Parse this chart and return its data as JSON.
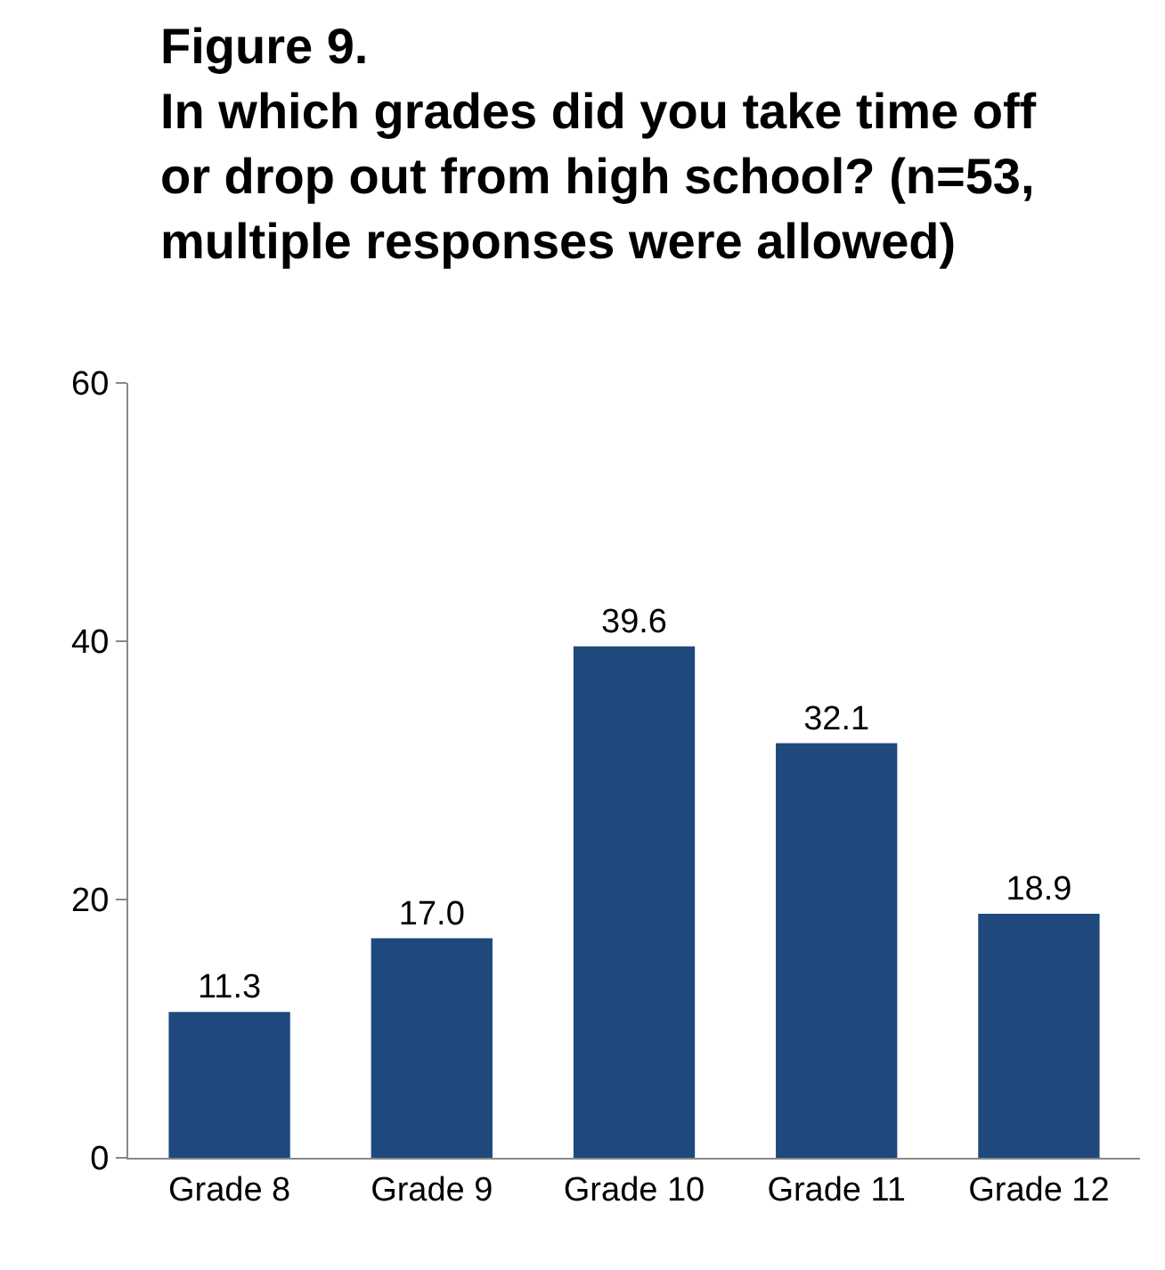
{
  "chart_data": {
    "type": "bar",
    "title": "Figure 9.\nIn which grades did you take time off\nor drop out from high school? (n=53,\nmultiple responses were allowed)",
    "categories": [
      "Grade 8",
      "Grade 9",
      "Grade 10",
      "Grade 11",
      "Grade 12"
    ],
    "values": [
      11.3,
      17.0,
      39.6,
      32.1,
      18.9
    ],
    "color": "#1f497d",
    "ylim": [
      0,
      60
    ],
    "yticks": [
      0,
      20,
      40,
      60
    ],
    "data_labels": true,
    "value_labels": [
      "11.3",
      "17.0",
      "39.6",
      "32.1",
      "18.9"
    ]
  }
}
